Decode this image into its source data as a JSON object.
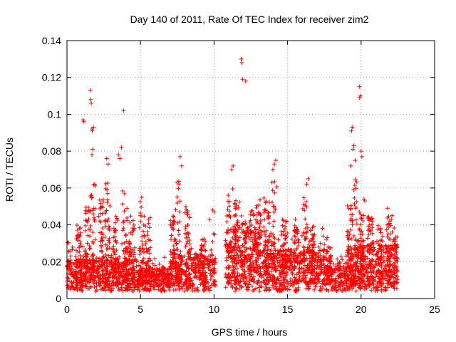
{
  "chart_data": {
    "type": "scatter",
    "title": "Day 140 of 2011, Rate Of TEC Index for receiver zim2",
    "xlabel": "GPS time / hours",
    "ylabel": "ROTI / TECUs",
    "xlim": [
      0,
      25
    ],
    "ylim": [
      0,
      0.14
    ],
    "xticks": [
      0,
      5,
      10,
      15,
      20,
      25
    ],
    "yticks": [
      0,
      0.02,
      0.04,
      0.06,
      0.08,
      0.1,
      0.12,
      0.14
    ],
    "xtick_labels": [
      "0",
      "5",
      "10",
      "15",
      "20",
      "25"
    ],
    "ytick_labels": [
      "0",
      "0.02",
      "0.04",
      "0.06",
      "0.08",
      "0.1",
      "0.12",
      "0.14"
    ],
    "grid": true,
    "marker": "+",
    "series_color": "#ff0000",
    "series": [
      {
        "name": "ROTI",
        "outliers": [
          [
            1.1,
            0.097
          ],
          [
            1.15,
            0.096
          ],
          [
            1.6,
            0.113
          ],
          [
            1.62,
            0.108
          ],
          [
            1.65,
            0.106
          ],
          [
            1.7,
            0.092
          ],
          [
            1.72,
            0.091
          ],
          [
            1.8,
            0.093
          ],
          [
            1.75,
            0.081
          ],
          [
            1.7,
            0.078
          ],
          [
            3.85,
            0.102
          ],
          [
            3.7,
            0.082
          ],
          [
            3.5,
            0.078
          ],
          [
            3.6,
            0.076
          ],
          [
            7.7,
            0.077
          ],
          [
            7.8,
            0.072
          ],
          [
            2.7,
            0.076
          ],
          [
            2.8,
            0.073
          ],
          [
            11.85,
            0.13
          ],
          [
            11.9,
            0.128
          ],
          [
            11.95,
            0.119
          ],
          [
            12.15,
            0.118
          ],
          [
            11.3,
            0.072
          ],
          [
            11.2,
            0.07
          ],
          [
            14.2,
            0.075
          ],
          [
            14.1,
            0.073
          ],
          [
            14.0,
            0.07
          ],
          [
            19.9,
            0.115
          ],
          [
            19.95,
            0.11
          ],
          [
            19.9,
            0.109
          ],
          [
            19.4,
            0.093
          ],
          [
            19.35,
            0.091
          ],
          [
            19.5,
            0.083
          ],
          [
            19.45,
            0.081
          ],
          [
            20.0,
            0.08
          ],
          [
            20.05,
            0.077
          ],
          [
            19.3,
            0.072
          ],
          [
            19.6,
            0.075
          ],
          [
            16.4,
            0.065
          ],
          [
            16.3,
            0.062
          ],
          [
            20.2,
            0.054
          ],
          [
            20.25,
            0.053
          ],
          [
            21.8,
            0.049
          ],
          [
            22.1,
            0.045
          ],
          [
            9.9,
            0.048
          ],
          [
            10.0,
            0.047
          ],
          [
            9.7,
            0.043
          ],
          [
            13.5,
            0.048
          ],
          [
            13.7,
            0.044
          ]
        ],
        "bursts": [
          [
            0.8,
            0.04
          ],
          [
            1.4,
            0.05
          ],
          [
            1.75,
            0.065
          ],
          [
            2.3,
            0.055
          ],
          [
            2.75,
            0.065
          ],
          [
            3.3,
            0.05
          ],
          [
            3.95,
            0.06
          ],
          [
            4.4,
            0.045
          ],
          [
            5.1,
            0.06
          ],
          [
            5.5,
            0.045
          ],
          [
            7.2,
            0.045
          ],
          [
            7.55,
            0.065
          ],
          [
            8.2,
            0.05
          ],
          [
            9.3,
            0.035
          ],
          [
            11.0,
            0.06
          ],
          [
            11.5,
            0.055
          ],
          [
            12.0,
            0.045
          ],
          [
            12.6,
            0.05
          ],
          [
            13.0,
            0.055
          ],
          [
            13.6,
            0.055
          ],
          [
            14.1,
            0.065
          ],
          [
            14.8,
            0.045
          ],
          [
            15.6,
            0.045
          ],
          [
            16.2,
            0.055
          ],
          [
            16.7,
            0.04
          ],
          [
            17.8,
            0.035
          ],
          [
            19.2,
            0.055
          ],
          [
            19.55,
            0.065
          ],
          [
            20.0,
            0.05
          ],
          [
            20.6,
            0.045
          ],
          [
            21.3,
            0.04
          ],
          [
            21.9,
            0.045
          ],
          [
            22.3,
            0.035
          ]
        ]
      }
    ]
  }
}
